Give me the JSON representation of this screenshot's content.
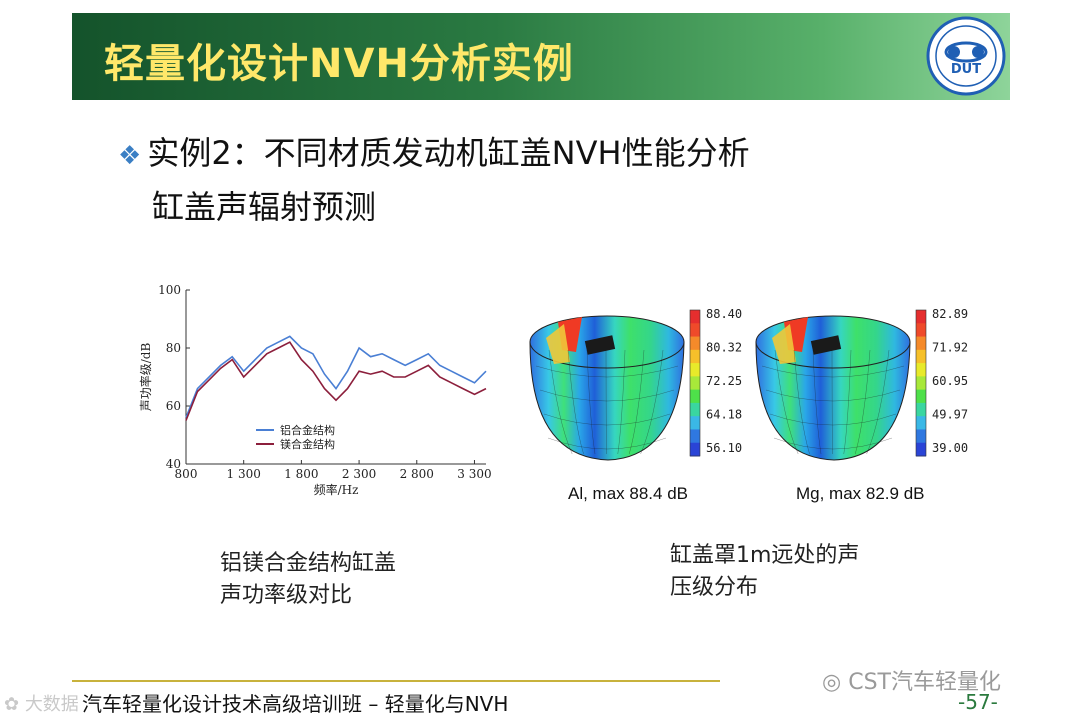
{
  "header": {
    "title": "轻量化设计NVH分析实例",
    "logo_text": "DUT"
  },
  "content": {
    "bullet": "实例2：不同材质发动机缸盖NVH性能分析",
    "subtitle": "缸盖声辐射预测"
  },
  "chart_data": {
    "type": "line",
    "ylabel": "声功率级/dB",
    "xlabel": "频率/Hz",
    "xlim": [
      800,
      3400
    ],
    "ylim": [
      40,
      100
    ],
    "x_ticks": [
      800,
      1300,
      1800,
      2300,
      2800,
      3300
    ],
    "x_tick_labels": [
      "800",
      "1 300",
      "1 800",
      "2 300",
      "2 800",
      "3 300"
    ],
    "y_ticks": [
      40,
      60,
      80,
      100
    ],
    "legend_position": "lower-left",
    "series": [
      {
        "name": "铝合金结构",
        "color": "#4a7fd4",
        "x": [
          800,
          900,
          1000,
          1100,
          1200,
          1300,
          1400,
          1500,
          1600,
          1700,
          1800,
          1900,
          2000,
          2100,
          2200,
          2300,
          2400,
          2500,
          2600,
          2700,
          2800,
          2900,
          3000,
          3100,
          3200,
          3300,
          3400
        ],
        "values": [
          56,
          66,
          70,
          74,
          77,
          72,
          76,
          80,
          82,
          84,
          80,
          78,
          71,
          66,
          72,
          80,
          77,
          78,
          76,
          74,
          76,
          78,
          74,
          72,
          70,
          68,
          72
        ]
      },
      {
        "name": "镁合金结构",
        "color": "#8c1f3c",
        "x": [
          800,
          900,
          1000,
          1100,
          1200,
          1300,
          1400,
          1500,
          1600,
          1700,
          1800,
          1900,
          2000,
          2100,
          2200,
          2300,
          2400,
          2500,
          2600,
          2700,
          2800,
          2900,
          3000,
          3100,
          3200,
          3300,
          3400
        ],
        "values": [
          55,
          65,
          69,
          73,
          76,
          70,
          74,
          78,
          80,
          82,
          76,
          72,
          66,
          62,
          66,
          72,
          71,
          72,
          70,
          70,
          72,
          74,
          70,
          68,
          66,
          64,
          66
        ]
      }
    ]
  },
  "heatmaps": [
    {
      "caption": "Al, max 88.4 dB",
      "scale": [
        "88.40",
        "80.32",
        "72.25",
        "64.18",
        "56.10"
      ]
    },
    {
      "caption": "Mg, max 82.9 dB",
      "scale": [
        "82.89",
        "71.92",
        "60.95",
        "49.97",
        "39.00"
      ]
    }
  ],
  "notes": {
    "left": [
      "铝镁合金结构缸盖",
      "声功率级对比"
    ],
    "right": [
      "缸盖罩1m远处的声",
      "压级分布"
    ]
  },
  "footer": {
    "text": "汽车轻量化设计技术高级培训班 – 轻量化与NVH",
    "page": "-57-"
  },
  "watermarks": {
    "right": "CST汽车轻量化",
    "left": "大数据"
  },
  "colors": {
    "title": "#ffe86a",
    "accent": "#3b7fc4",
    "al_series": "#4a7fd4",
    "mg_series": "#8c1f3c"
  }
}
